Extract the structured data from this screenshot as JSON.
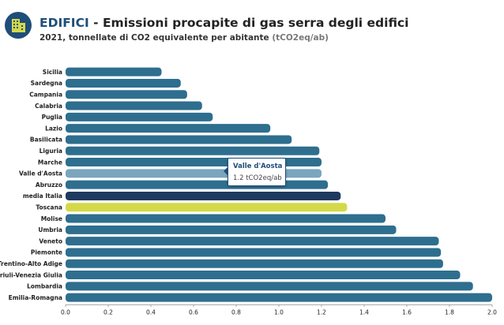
{
  "header": {
    "title_highlight": "EDIFICI",
    "title_rest": " - Emissioni procapite di gas serra degli edifici",
    "subtitle_main": "2021, tonnellate di CO2 equivalente per abitante ",
    "subtitle_unit": "(tCO2eq/ab)",
    "icon": "building-icon"
  },
  "tooltip": {
    "title": "Valle d'Aosta",
    "value": "1.2 tCO2eq/ab"
  },
  "colors": {
    "bar": "#2e6e8e",
    "bar_hover": "#7aa6bd",
    "average": "#1f3a5f",
    "highlight": "#d4d94a",
    "title_accent": "#1f4e79"
  },
  "chart_data": {
    "type": "bar",
    "orientation": "horizontal",
    "categories": [
      "Sicilia",
      "Sardegna",
      "Campania",
      "Calabria",
      "Puglia",
      "Lazio",
      "Basilicata",
      "Liguria",
      "Marche",
      "Valle d'Aosta",
      "Abruzzo",
      "media Italia",
      "Toscana",
      "Molise",
      "Umbria",
      "Veneto",
      "Piemonte",
      "Trentino-Alto Adige",
      "Friuli-Venezia Giulia",
      "Lombardia",
      "Emilia-Romagna"
    ],
    "values": [
      0.45,
      0.54,
      0.57,
      0.64,
      0.69,
      0.96,
      1.06,
      1.19,
      1.2,
      1.2,
      1.23,
      1.29,
      1.32,
      1.5,
      1.55,
      1.75,
      1.76,
      1.77,
      1.85,
      1.91,
      2.0
    ],
    "bar_styles": [
      "normal",
      "normal",
      "normal",
      "normal",
      "normal",
      "normal",
      "normal",
      "normal",
      "normal",
      "hover",
      "normal",
      "average",
      "highlight",
      "normal",
      "normal",
      "normal",
      "normal",
      "normal",
      "normal",
      "normal",
      "normal"
    ],
    "xlim": [
      0,
      2.0
    ],
    "xticks": [
      "0.0",
      "0.2",
      "0.4",
      "0.6",
      "0.8",
      "1.0",
      "1.2",
      "1.4",
      "1.6",
      "1.8",
      "2.0"
    ],
    "grid": false
  }
}
